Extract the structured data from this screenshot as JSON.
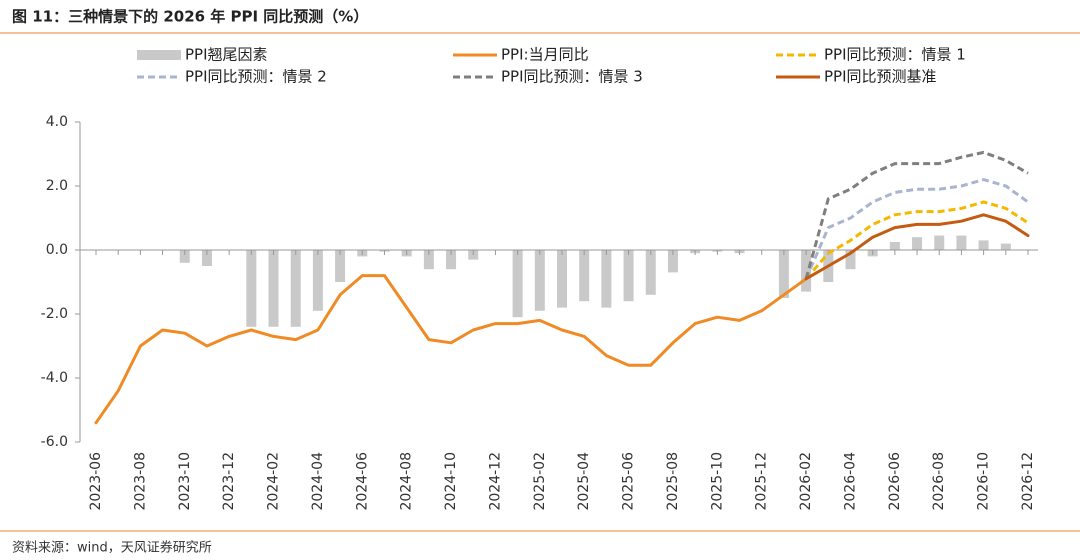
{
  "chart_data": {
    "type": "combo",
    "title": "图 11：三种情景下的 2026 年 PPI 同比预测（%）",
    "source": "资料来源：wind，天风证券研究所",
    "categories": [
      "2023-06",
      null,
      "2023-08",
      null,
      "2023-10",
      null,
      "2023-12",
      null,
      "2024-02",
      null,
      "2024-04",
      null,
      "2024-06",
      null,
      "2024-08",
      null,
      "2024-10",
      null,
      "2024-12",
      null,
      "2025-02",
      null,
      "2025-04",
      null,
      "2025-06",
      null,
      "2025-08",
      null,
      "2025-10",
      null,
      "2025-12",
      null,
      "2026-02",
      null,
      "2026-04",
      null,
      "2026-06",
      null,
      "2026-08",
      null,
      "2026-10",
      null,
      "2026-12"
    ],
    "ylim": [
      -6,
      4
    ],
    "yticks": [
      {
        "value": -6,
        "label": "-6.0"
      },
      {
        "value": -4,
        "label": "-4.0"
      },
      {
        "value": -2,
        "label": "-2.0"
      },
      {
        "value": 0,
        "label": "0.0"
      },
      {
        "value": 2,
        "label": "2.0"
      },
      {
        "value": 4,
        "label": "4.0"
      }
    ],
    "series": [
      {
        "name": "PPI翘尾因素",
        "type": "bar",
        "color": "#c9c9c9",
        "values": [
          null,
          null,
          null,
          null,
          -0.4,
          -0.5,
          null,
          -2.4,
          -2.4,
          -2.4,
          -1.9,
          -1.0,
          -0.2,
          -0.05,
          -0.2,
          -0.6,
          -0.6,
          -0.3,
          null,
          -2.1,
          -1.9,
          -1.8,
          -1.6,
          -1.8,
          -1.6,
          -1.4,
          -0.7,
          -0.1,
          -0.05,
          -0.1,
          null,
          -1.5,
          -1.3,
          -1.0,
          -0.6,
          -0.2,
          0.25,
          0.4,
          0.45,
          0.45,
          0.3,
          0.2,
          null
        ]
      },
      {
        "name": "PPI:当月同比",
        "type": "line",
        "style": "solid",
        "color": "#f08a24",
        "values": [
          -5.4,
          -4.4,
          -3.0,
          -2.5,
          -2.6,
          -3.0,
          -2.7,
          -2.5,
          -2.7,
          -2.8,
          -2.5,
          -1.4,
          -0.8,
          -0.8,
          -1.8,
          -2.8,
          -2.9,
          -2.5,
          -2.3,
          -2.3,
          -2.2,
          -2.5,
          -2.7,
          -3.3,
          -3.6,
          -3.6,
          -2.9,
          -2.3,
          -2.1,
          -2.2,
          -1.9,
          -1.4,
          -0.9,
          null,
          null,
          null,
          null,
          null,
          null,
          null,
          null,
          null,
          null
        ]
      },
      {
        "name": "PPI同比预测：情景 1",
        "type": "line",
        "style": "dashed",
        "color": "#f5b800",
        "values": [
          null,
          null,
          null,
          null,
          null,
          null,
          null,
          null,
          null,
          null,
          null,
          null,
          null,
          null,
          null,
          null,
          null,
          null,
          null,
          null,
          null,
          null,
          null,
          null,
          null,
          null,
          null,
          null,
          null,
          null,
          null,
          null,
          -0.9,
          -0.1,
          0.3,
          0.8,
          1.1,
          1.2,
          1.2,
          1.3,
          1.5,
          1.3,
          0.85
        ]
      },
      {
        "name": "PPI同比预测：情景 2",
        "type": "line",
        "style": "dashed",
        "color": "#a9b5cf",
        "values": [
          null,
          null,
          null,
          null,
          null,
          null,
          null,
          null,
          null,
          null,
          null,
          null,
          null,
          null,
          null,
          null,
          null,
          null,
          null,
          null,
          null,
          null,
          null,
          null,
          null,
          null,
          null,
          null,
          null,
          null,
          null,
          null,
          -0.9,
          0.7,
          1.0,
          1.5,
          1.8,
          1.9,
          1.9,
          2.0,
          2.2,
          2.0,
          1.5
        ]
      },
      {
        "name": "PPI同比预测：情景 3",
        "type": "line",
        "style": "dashed",
        "color": "#7f7f7f",
        "values": [
          null,
          null,
          null,
          null,
          null,
          null,
          null,
          null,
          null,
          null,
          null,
          null,
          null,
          null,
          null,
          null,
          null,
          null,
          null,
          null,
          null,
          null,
          null,
          null,
          null,
          null,
          null,
          null,
          null,
          null,
          null,
          null,
          -0.9,
          1.6,
          1.9,
          2.4,
          2.7,
          2.7,
          2.7,
          2.9,
          3.05,
          2.8,
          2.4
        ]
      },
      {
        "name": "PPI同比预测基准",
        "type": "line",
        "style": "solid",
        "color": "#c55a11",
        "values": [
          null,
          null,
          null,
          null,
          null,
          null,
          null,
          null,
          null,
          null,
          null,
          null,
          null,
          null,
          null,
          null,
          null,
          null,
          null,
          null,
          null,
          null,
          null,
          null,
          null,
          null,
          null,
          null,
          null,
          null,
          null,
          null,
          -0.9,
          -0.5,
          -0.1,
          0.4,
          0.7,
          0.8,
          0.8,
          0.9,
          1.1,
          0.9,
          0.45
        ]
      }
    ]
  }
}
